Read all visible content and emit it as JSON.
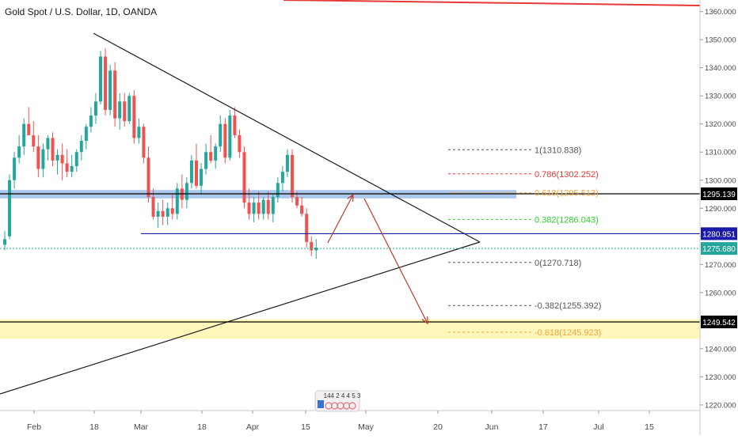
{
  "title": "Gold Spot / U.S. Dollar, 1D, OANDA",
  "logo_text": "144 2 4 4 5 3",
  "chart_data": {
    "type": "candlestick",
    "ylim": [
      1218,
      1363
    ],
    "y_ticks": [
      "1220.000",
      "1230.000",
      "1240.000",
      "1250.000",
      "1260.000",
      "1270.000",
      "1280.000",
      "1290.000",
      "1300.000",
      "1310.000",
      "1320.000",
      "1330.000",
      "1340.000",
      "1350.000",
      "1360.000"
    ],
    "x_ticks": [
      "Feb",
      "18",
      "Mar",
      "18",
      "Apr",
      "15",
      "May",
      "20",
      "Jun",
      "17",
      "Jul",
      "15"
    ],
    "candles": [
      [
        1277,
        1282,
        1275,
        1279
      ],
      [
        1280,
        1302,
        1279,
        1300
      ],
      [
        1300,
        1310,
        1297,
        1308
      ],
      [
        1308,
        1316,
        1306,
        1312
      ],
      [
        1312,
        1322,
        1309,
        1320
      ],
      [
        1320,
        1326,
        1317,
        1316
      ],
      [
        1316,
        1321,
        1310,
        1312
      ],
      [
        1312,
        1316,
        1301,
        1304
      ],
      [
        1304,
        1313,
        1301,
        1311
      ],
      [
        1311,
        1316,
        1307,
        1315
      ],
      [
        1315,
        1317,
        1305,
        1307
      ],
      [
        1307,
        1311,
        1302,
        1309
      ],
      [
        1309,
        1313,
        1300,
        1306
      ],
      [
        1306,
        1311,
        1301,
        1303
      ],
      [
        1303,
        1309,
        1301,
        1305
      ],
      [
        1305,
        1311,
        1303,
        1310
      ],
      [
        1310,
        1316,
        1307,
        1314
      ],
      [
        1314,
        1320,
        1311,
        1319
      ],
      [
        1319,
        1326,
        1317,
        1323
      ],
      [
        1323,
        1331,
        1320,
        1328
      ],
      [
        1328,
        1346,
        1327,
        1344
      ],
      [
        1344,
        1347,
        1323,
        1325
      ],
      [
        1325,
        1341,
        1323,
        1339
      ],
      [
        1339,
        1342,
        1319,
        1322
      ],
      [
        1322,
        1331,
        1318,
        1328
      ],
      [
        1328,
        1331,
        1319,
        1321
      ],
      [
        1321,
        1331,
        1320,
        1330
      ],
      [
        1330,
        1332,
        1313,
        1315
      ],
      [
        1315,
        1322,
        1313,
        1319
      ],
      [
        1319,
        1320,
        1306,
        1308
      ],
      [
        1308,
        1312,
        1292,
        1294
      ],
      [
        1294,
        1297,
        1286,
        1287
      ],
      [
        1287,
        1292,
        1283,
        1289
      ],
      [
        1289,
        1293,
        1284,
        1287
      ],
      [
        1287,
        1292,
        1284,
        1290
      ],
      [
        1290,
        1295,
        1286,
        1288
      ],
      [
        1288,
        1299,
        1286,
        1297
      ],
      [
        1297,
        1302,
        1290,
        1293
      ],
      [
        1293,
        1301,
        1290,
        1299
      ],
      [
        1299,
        1309,
        1297,
        1307
      ],
      [
        1307,
        1313,
        1297,
        1298
      ],
      [
        1298,
        1306,
        1295,
        1304
      ],
      [
        1304,
        1313,
        1302,
        1310
      ],
      [
        1310,
        1316,
        1306,
        1307
      ],
      [
        1307,
        1313,
        1304,
        1312
      ],
      [
        1312,
        1323,
        1310,
        1320
      ],
      [
        1320,
        1322,
        1306,
        1308
      ],
      [
        1308,
        1325,
        1307,
        1323
      ],
      [
        1323,
        1326,
        1315,
        1316
      ],
      [
        1316,
        1318,
        1308,
        1310
      ],
      [
        1310,
        1312,
        1290,
        1292
      ],
      [
        1292,
        1297,
        1286,
        1288
      ],
      [
        1288,
        1294,
        1285,
        1292
      ],
      [
        1292,
        1296,
        1286,
        1288
      ],
      [
        1288,
        1294,
        1286,
        1293
      ],
      [
        1293,
        1296,
        1286,
        1288
      ],
      [
        1288,
        1295,
        1285,
        1294
      ],
      [
        1294,
        1301,
        1292,
        1299
      ],
      [
        1299,
        1305,
        1296,
        1303
      ],
      [
        1303,
        1311,
        1301,
        1309
      ],
      [
        1309,
        1311,
        1292,
        1294
      ],
      [
        1294,
        1296,
        1290,
        1291
      ],
      [
        1291,
        1294,
        1287,
        1288
      ],
      [
        1288,
        1290,
        1276,
        1278
      ],
      [
        1278,
        1280,
        1273,
        1275
      ],
      [
        1275,
        1279,
        1272,
        1276
      ]
    ],
    "horizontal_levels": [
      {
        "label": "1295.139",
        "value": 1295.139,
        "color": "#000000"
      },
      {
        "label": "1280.951",
        "value": 1280.951,
        "color": "#1a1aa8"
      },
      {
        "label": "1275.680",
        "value": 1275.68,
        "color": "#26a69a"
      },
      {
        "label": "1249.542",
        "value": 1249.542,
        "color": "#000000"
      }
    ],
    "fib_levels": [
      {
        "text": "1(1310.838)",
        "value": 1310.838,
        "color": "#555555"
      },
      {
        "text": "0.786(1302.252)",
        "value": 1302.252,
        "color": "#e53935"
      },
      {
        "text": "0.618(1295.513)",
        "value": 1295.513,
        "color": "#f2a33a"
      },
      {
        "text": "0.382(1286.043)",
        "value": 1286.043,
        "color": "#2ecc2e"
      },
      {
        "text": "0(1270.718)",
        "value": 1270.718,
        "color": "#555555"
      },
      {
        "text": "-0.382(1255.392)",
        "value": 1255.392,
        "color": "#555555"
      },
      {
        "text": "-0.618(1245.923)",
        "value": 1245.923,
        "color": "#f2a33a"
      }
    ],
    "zones": [
      {
        "from": 1293.5,
        "to": 1296.5,
        "color": "#4a86d8"
      },
      {
        "from": 1243.5,
        "to": 1250.5,
        "color": "#fff59d"
      }
    ],
    "colors": {
      "up": "#26a69a",
      "down": "#ef5350",
      "text": "#4a4a4a"
    }
  }
}
